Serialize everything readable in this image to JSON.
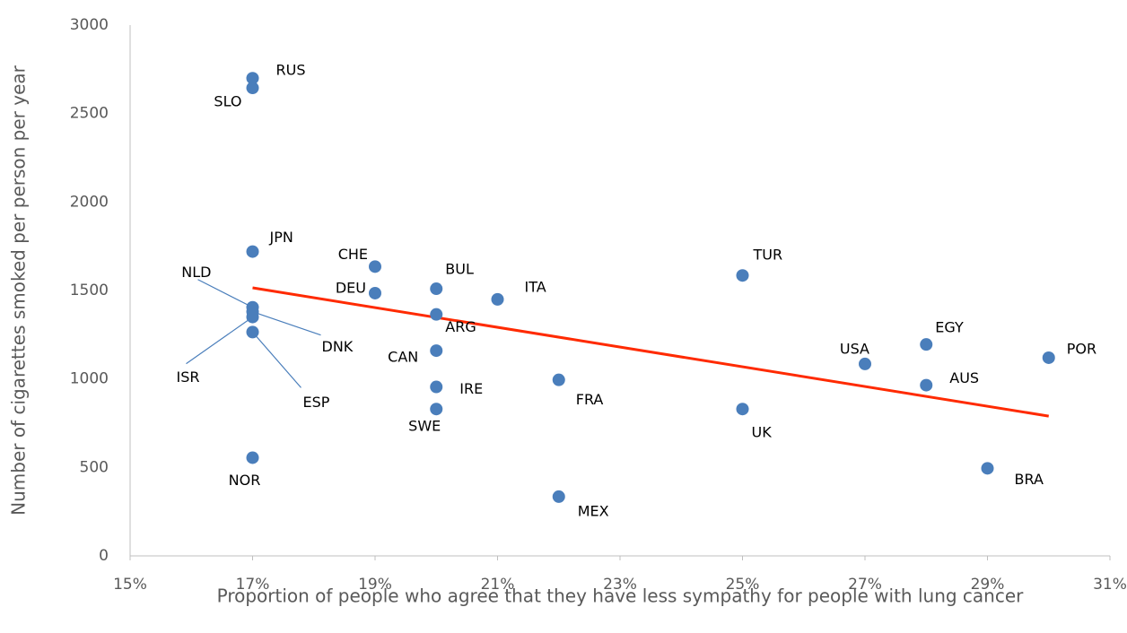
{
  "chart_data": {
    "type": "scatter",
    "xlabel": "Proportion of people who agree that they have less sympathy for people with lung cancer",
    "ylabel": "Number of cigarettes smoked per person per year",
    "labels": [
      "RUS",
      "SLO",
      "JPN",
      "CHE",
      "DEU",
      "BUL",
      "ARG",
      "ITA",
      "CAN",
      "IRE",
      "SWE",
      "FRA",
      "MEX",
      "TUR",
      "UK",
      "USA",
      "EGY",
      "AUS",
      "POR",
      "BRA",
      "NLD",
      "DNK",
      "ISR",
      "ESP",
      "NOR"
    ],
    "x": [
      17,
      17,
      17,
      19,
      19,
      20,
      20,
      21,
      20,
      20,
      20,
      22,
      22,
      25,
      25,
      27,
      28,
      28,
      30,
      29,
      17,
      17,
      17,
      17,
      17
    ],
    "values": [
      2700,
      2645,
      1720,
      1635,
      1485,
      1510,
      1365,
      1450,
      1160,
      955,
      830,
      995,
      335,
      1585,
      830,
      1085,
      1195,
      965,
      1120,
      495,
      1405,
      1380,
      1350,
      1265,
      555
    ],
    "color": "#4a7ebb",
    "trendline": {
      "x": [
        17,
        30
      ],
      "values": [
        1515,
        790
      ],
      "color": "#ff2a00"
    },
    "xlim": [
      15,
      31
    ],
    "xticks": [
      {
        "value": 15,
        "label": "15%"
      },
      {
        "value": 17,
        "label": "17%"
      },
      {
        "value": 19,
        "label": "19%"
      },
      {
        "value": 21,
        "label": "21%"
      },
      {
        "value": 23,
        "label": "23%"
      },
      {
        "value": 25,
        "label": "25%"
      },
      {
        "value": 27,
        "label": "27%"
      },
      {
        "value": 29,
        "label": "29%"
      },
      {
        "value": 31,
        "label": "31%"
      }
    ],
    "ylim": [
      0,
      3000
    ],
    "yticks": [
      0,
      500,
      1000,
      1500,
      2000,
      2500,
      3000
    ],
    "grid": false
  }
}
